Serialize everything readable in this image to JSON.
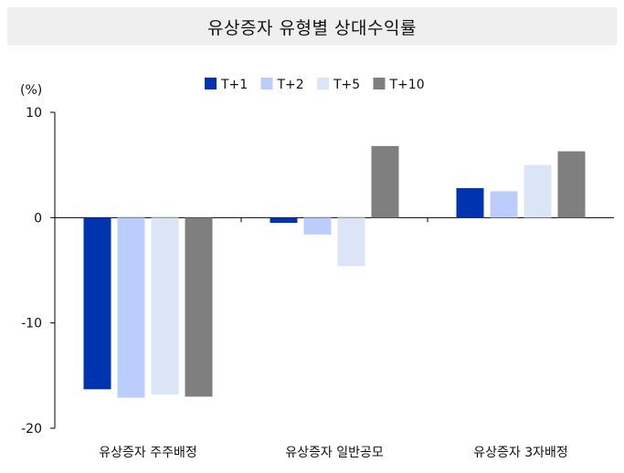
{
  "chart_data": {
    "type": "bar",
    "title": "유상증자 유형별 상대수익률",
    "ylabel": "(%)",
    "xlabel": "",
    "ylim": [
      -20,
      10
    ],
    "yticks": [
      10,
      0,
      -10,
      -20
    ],
    "grid": false,
    "legend_position": "top-center",
    "categories": [
      "유상증자 주주배정",
      "유상증자 일반공모",
      "유상증자 3자배정"
    ],
    "series": [
      {
        "name": "T+1",
        "color": "#0033b0",
        "values": [
          -16.3,
          -0.5,
          2.8
        ]
      },
      {
        "name": "T+2",
        "color": "#bccdfb",
        "values": [
          -17.1,
          -1.6,
          2.5
        ]
      },
      {
        "name": "T+5",
        "color": "#dbe5f6",
        "values": [
          -16.8,
          -4.6,
          5.0
        ]
      },
      {
        "name": "T+10",
        "color": "#7f7f7f",
        "values": [
          -17.0,
          6.8,
          6.3
        ]
      }
    ]
  }
}
